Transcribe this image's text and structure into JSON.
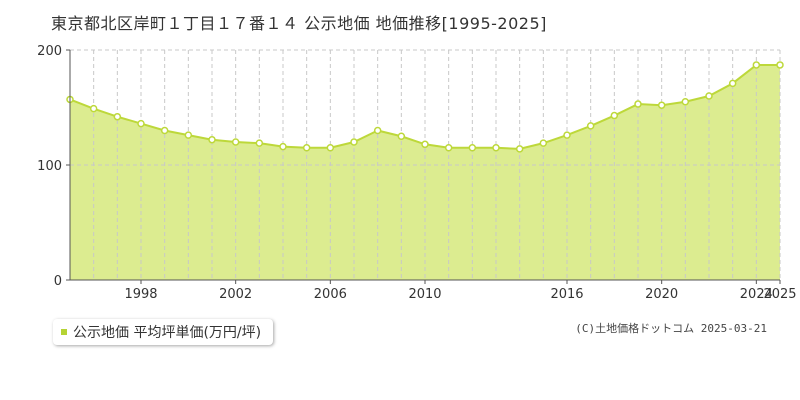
{
  "title": "東京都北区岸町１丁目１７番１４ 公示地価 地価推移[1995-2025]",
  "legend": {
    "label": "公示地価 平均坪単価(万円/坪)"
  },
  "copyright": "(C)土地価格ドットコム 2025-03-21",
  "colors": {
    "fill": "#dcec90",
    "line": "#bdd83a",
    "grid": "#c8c8c8",
    "axis": "#555555",
    "marker_fill": "#ffffff",
    "legend_swatch": "#b5d334"
  },
  "chart_data": {
    "type": "area",
    "title": "東京都北区岸町１丁目１７番１４ 公示地価 地価推移[1995-2025]",
    "xlabel": "",
    "ylabel": "",
    "ylim": [
      0,
      200
    ],
    "xlim": [
      1995,
      2025
    ],
    "y_ticks": [
      "0",
      "100",
      "200"
    ],
    "x_tick_labels": [
      "1998",
      "2002",
      "2006",
      "2010",
      "2016",
      "2020",
      "2024",
      "2025"
    ],
    "grid": true,
    "legend_position": "bottom-left",
    "series": [
      {
        "name": "公示地価 平均坪単価(万円/坪)",
        "x": [
          1995,
          1996,
          1997,
          1998,
          1999,
          2000,
          2001,
          2002,
          2003,
          2004,
          2005,
          2006,
          2007,
          2008,
          2009,
          2010,
          2011,
          2012,
          2013,
          2014,
          2015,
          2016,
          2017,
          2018,
          2019,
          2020,
          2021,
          2022,
          2023,
          2024,
          2025
        ],
        "values": [
          157,
          149,
          142,
          136,
          130,
          126,
          122,
          120,
          119,
          116,
          115,
          115,
          120,
          130,
          125,
          118,
          115,
          115,
          115,
          114,
          119,
          126,
          134,
          143,
          153,
          152,
          155,
          160,
          171,
          187,
          187
        ]
      }
    ]
  }
}
